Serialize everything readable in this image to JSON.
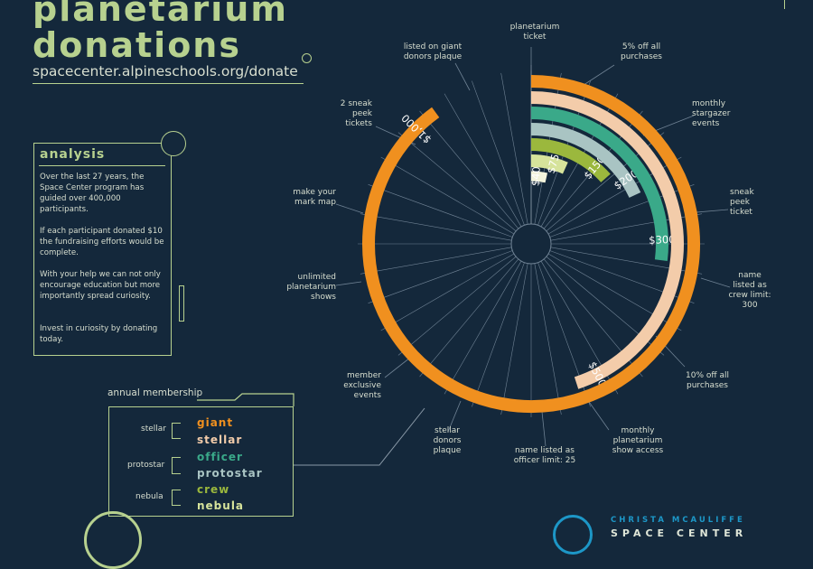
{
  "header": {
    "title_line1": "planetarium",
    "title_line2": "donations",
    "website": "spacecenter.alpineschools.org/donate"
  },
  "analysis": {
    "title": "analysis",
    "paragraphs": [
      "Over the last 27 years, the Space Center program has guided over 400,000 participants.",
      "If each participant donated $10 the fundraising efforts would be complete.",
      "With your help we can not only encourage education but more importantly spread curiosity.",
      "Invest in curiosity by donating today."
    ]
  },
  "membership": {
    "label": "annual membership",
    "tiers": [
      {
        "name": "stellar",
        "levels": [
          {
            "name": "giant",
            "color": "#f0901f"
          },
          {
            "name": "stellar",
            "color": "#f3ccaa"
          }
        ]
      },
      {
        "name": "protostar",
        "levels": [
          {
            "name": "officer",
            "color": "#3aa989"
          },
          {
            "name": "protostar",
            "color": "#a9c4c3"
          }
        ]
      },
      {
        "name": "nebula",
        "levels": [
          {
            "name": "crew",
            "color": "#9bb83d"
          },
          {
            "name": "nebula",
            "color": "#d6e39b"
          }
        ]
      }
    ]
  },
  "branding": {
    "line1": "CHRISTA MCAULIFFE",
    "line2": "SPACE CENTER"
  },
  "chart_data": {
    "type": "radial bar",
    "unit": "$",
    "categories": [
      "$40",
      "$75",
      "$150",
      "$200",
      "$300",
      "$500",
      "$1,000"
    ],
    "values": [
      40,
      75,
      150,
      200,
      300,
      500,
      1000
    ],
    "ring_colors": [
      "#f3f4dc",
      "#d6e39b",
      "#9bb83d",
      "#a9c4c3",
      "#3aa989",
      "#f3ccaa",
      "#f0901f"
    ],
    "max": 1000,
    "rewards": [
      "planetarium ticket",
      "5% off all purchases",
      "monthly stargazer events",
      "sneak peek ticket",
      "name listed as crew limit: 300",
      "10% off all purchases",
      "monthly planetarium show access",
      "name listed as officer limit: 25",
      "stellar donors plaque",
      "member exclusive events",
      "unlimited planetarium shows",
      "make your mark map",
      "2 sneak peek tickets",
      "listed on giant donors plaque"
    ]
  }
}
